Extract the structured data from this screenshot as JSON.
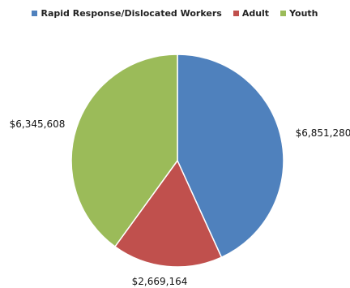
{
  "chart_data": {
    "type": "pie",
    "title": "",
    "legend_position": "top",
    "series": [
      {
        "name": "Rapid Response/Dislocated Workers",
        "value": 6851280,
        "label": "$6,851,280",
        "color": "#4F81BD"
      },
      {
        "name": "Adult",
        "value": 2669164,
        "label": "$2,669,164",
        "color": "#C0504D"
      },
      {
        "name": "Youth",
        "value": 6345608,
        "label": "$6,345,608",
        "color": "#9BBB59"
      }
    ]
  }
}
